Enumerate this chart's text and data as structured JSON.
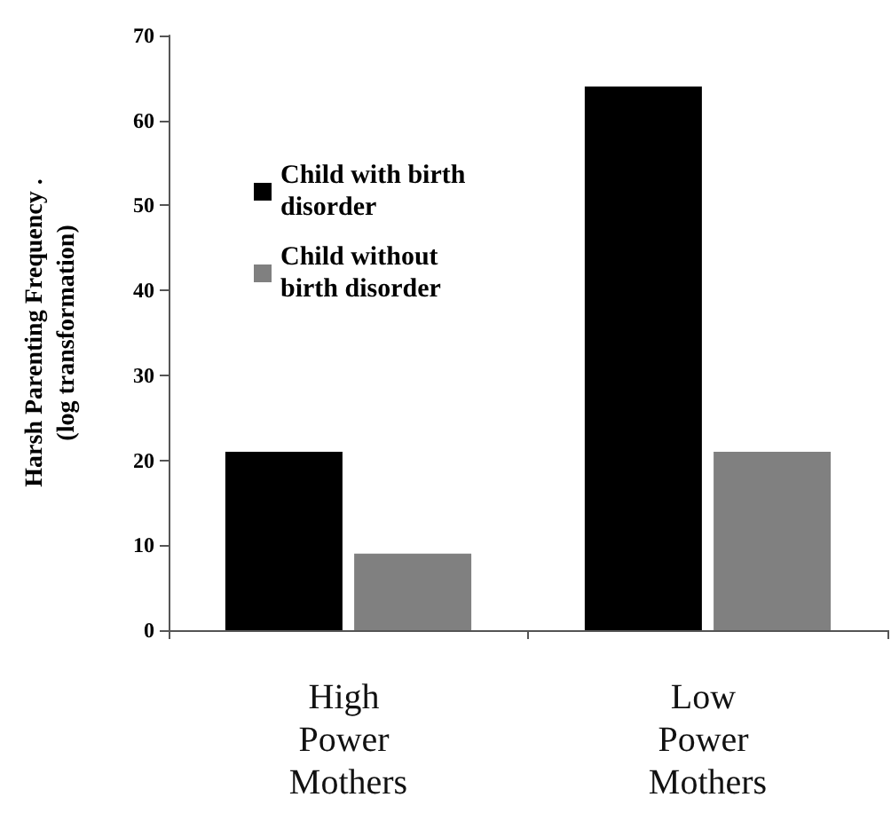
{
  "chart_data": {
    "type": "bar",
    "ylabel": "Harsh Parenting Frequency .\n(log transformation)",
    "categories": [
      "High Power Mothers",
      "Low Power Mothers"
    ],
    "series": [
      {
        "name": "Child with birth disorder",
        "color": "#000000",
        "values": [
          21,
          64
        ]
      },
      {
        "name": "Child without birth disorder",
        "color": "#808080",
        "values": [
          9,
          21
        ]
      }
    ],
    "ylim": [
      0,
      70
    ],
    "yticks": [
      0,
      10,
      20,
      30,
      40,
      50,
      60,
      70
    ],
    "grid": false,
    "legend": "top left"
  }
}
